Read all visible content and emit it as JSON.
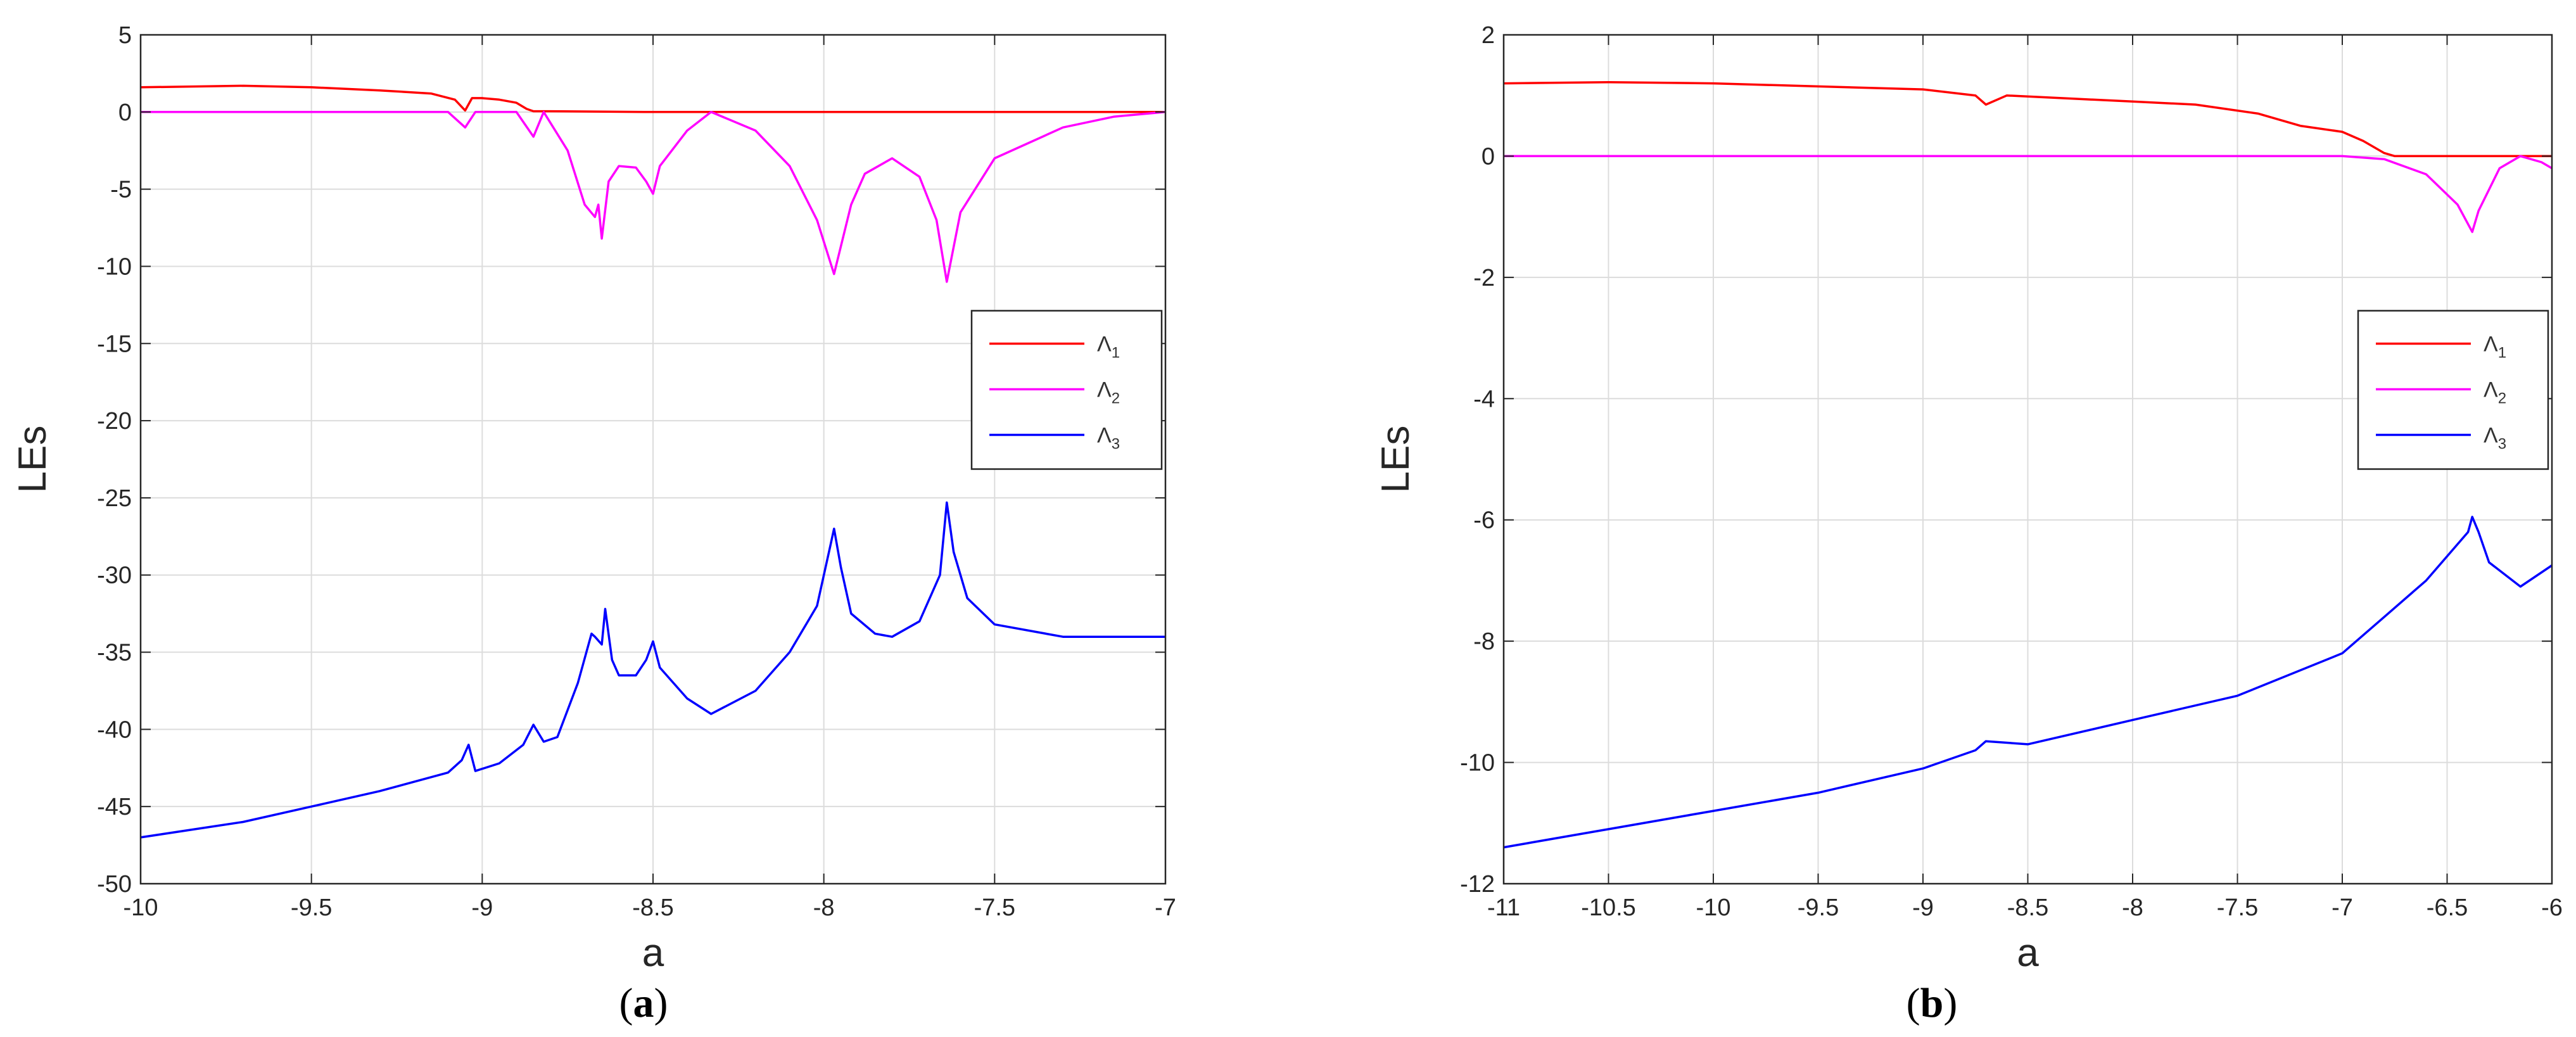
{
  "charts": [
    {
      "caption": "a",
      "colors": {
        "lambda1": "#ff0000",
        "lambda2": "#ff00ff",
        "lambda3": "#0000ff"
      },
      "chart_data": {
        "type": "line",
        "xlabel": "a",
        "ylabel": "LEs",
        "xlim": [
          -10,
          -7
        ],
        "ylim": [
          -50,
          5
        ],
        "xticks": [
          -10,
          -9.5,
          -9,
          -8.5,
          -8,
          -7.5,
          -7
        ],
        "xtick_labels": [
          "-10",
          "-9.5",
          "-9",
          "-8.5",
          "-8",
          "-7.5",
          "-7"
        ],
        "yticks": [
          5,
          0,
          -5,
          -10,
          -15,
          -20,
          -25,
          -30,
          -35,
          -40,
          -45,
          -50
        ],
        "ytick_labels": [
          "5",
          "0",
          "-5",
          "-10",
          "-15",
          "-20",
          "-25",
          "-30",
          "-35",
          "-40",
          "-45",
          "-50"
        ],
        "grid": true,
        "legend_position": "right",
        "series": [
          {
            "name": "Λ1",
            "legend_base": "Λ",
            "legend_sub": "1",
            "color": "#ff0000",
            "x": [
              -10,
              -9.7,
              -9.5,
              -9.3,
              -9.15,
              -9.08,
              -9.05,
              -9.03,
              -9.0,
              -8.95,
              -8.9,
              -8.87,
              -8.85,
              -8.8,
              -8.5,
              -8.0,
              -7.5,
              -7.0
            ],
            "y": [
              1.6,
              1.7,
              1.6,
              1.4,
              1.2,
              0.8,
              0.1,
              0.9,
              0.9,
              0.8,
              0.6,
              0.2,
              0.05,
              0.05,
              0.0,
              0.0,
              0.0,
              0.0
            ]
          },
          {
            "name": "Λ2",
            "legend_base": "Λ",
            "legend_sub": "2",
            "color": "#ff00ff",
            "x": [
              -10,
              -9.5,
              -9.1,
              -9.05,
              -9.02,
              -8.9,
              -8.85,
              -8.82,
              -8.75,
              -8.7,
              -8.67,
              -8.66,
              -8.65,
              -8.63,
              -8.6,
              -8.55,
              -8.52,
              -8.5,
              -8.48,
              -8.4,
              -8.33,
              -8.2,
              -8.1,
              -8.02,
              -7.97,
              -7.92,
              -7.88,
              -7.8,
              -7.72,
              -7.67,
              -7.64,
              -7.6,
              -7.5,
              -7.3,
              -7.15,
              -7.0
            ],
            "y": [
              0,
              0,
              0,
              -1.0,
              0,
              0,
              -1.6,
              0,
              -2.5,
              -6.0,
              -6.8,
              -6.0,
              -8.2,
              -4.5,
              -3.5,
              -3.6,
              -4.5,
              -5.3,
              -3.5,
              -1.2,
              0,
              -1.2,
              -3.5,
              -7.0,
              -10.5,
              -6.0,
              -4.0,
              -3.0,
              -4.2,
              -7.0,
              -11.0,
              -6.5,
              -3.0,
              -1.0,
              -0.3,
              0
            ]
          },
          {
            "name": "Λ3",
            "legend_base": "Λ",
            "legend_sub": "3",
            "color": "#0000ff",
            "x": [
              -10,
              -9.7,
              -9.5,
              -9.3,
              -9.1,
              -9.06,
              -9.04,
              -9.02,
              -8.95,
              -8.88,
              -8.85,
              -8.82,
              -8.78,
              -8.72,
              -8.68,
              -8.67,
              -8.65,
              -8.64,
              -8.62,
              -8.6,
              -8.55,
              -8.52,
              -8.5,
              -8.48,
              -8.4,
              -8.33,
              -8.2,
              -8.1,
              -8.02,
              -7.98,
              -7.97,
              -7.95,
              -7.92,
              -7.85,
              -7.8,
              -7.72,
              -7.66,
              -7.64,
              -7.62,
              -7.58,
              -7.5,
              -7.3,
              -7.0
            ],
            "y": [
              -47.0,
              -46.0,
              -45.0,
              -44.0,
              -42.8,
              -42.0,
              -41.0,
              -42.7,
              -42.2,
              -41.0,
              -39.7,
              -40.8,
              -40.5,
              -37.0,
              -33.8,
              -34.0,
              -34.5,
              -32.2,
              -35.5,
              -36.5,
              -36.5,
              -35.5,
              -34.3,
              -36.0,
              -38.0,
              -39.0,
              -37.5,
              -35.0,
              -32.0,
              -28.0,
              -27.0,
              -29.5,
              -32.5,
              -33.8,
              -34.0,
              -33.0,
              -30.0,
              -25.3,
              -28.5,
              -31.5,
              -33.2,
              -34.0,
              -34.0
            ]
          }
        ]
      }
    },
    {
      "caption": "b",
      "colors": {
        "lambda1": "#ff0000",
        "lambda2": "#ff00ff",
        "lambda3": "#0000ff"
      },
      "chart_data": {
        "type": "line",
        "xlabel": "a",
        "ylabel": "LEs",
        "xlim": [
          -11,
          -6
        ],
        "ylim": [
          -12,
          2
        ],
        "xticks": [
          -11,
          -10.5,
          -10,
          -9.5,
          -9,
          -8.5,
          -8,
          -7.5,
          -7,
          -6.5,
          -6
        ],
        "xtick_labels": [
          "-11",
          "-10.5",
          "-10",
          "-9.5",
          "-9",
          "-8.5",
          "-8",
          "-7.5",
          "-7",
          "-6.5",
          "-6"
        ],
        "yticks": [
          2,
          0,
          -2,
          -4,
          -6,
          -8,
          -10,
          -12
        ],
        "ytick_labels": [
          "2",
          "0",
          "-2",
          "-4",
          "-6",
          "-8",
          "-10",
          "-12"
        ],
        "grid": true,
        "legend_position": "right",
        "series": [
          {
            "name": "Λ1",
            "legend_base": "Λ",
            "legend_sub": "1",
            "color": "#ff0000",
            "x": [
              -11,
              -10.5,
              -10,
              -9.5,
              -9.0,
              -8.75,
              -8.7,
              -8.6,
              -8.3,
              -8.0,
              -7.7,
              -7.4,
              -7.2,
              -7.0,
              -6.9,
              -6.8,
              -6.75,
              -6.5,
              -6.0
            ],
            "y": [
              1.2,
              1.22,
              1.2,
              1.15,
              1.1,
              1.0,
              0.85,
              1.0,
              0.95,
              0.9,
              0.85,
              0.7,
              0.5,
              0.4,
              0.25,
              0.05,
              0.0,
              0.0,
              0.0
            ]
          },
          {
            "name": "Λ2",
            "legend_base": "Λ",
            "legend_sub": "2",
            "color": "#ff00ff",
            "x": [
              -11,
              -10,
              -9,
              -8,
              -7.0,
              -6.8,
              -6.6,
              -6.45,
              -6.38,
              -6.35,
              -6.25,
              -6.15,
              -6.05,
              -6.0
            ],
            "y": [
              0,
              0,
              0,
              0,
              0,
              -0.05,
              -0.3,
              -0.8,
              -1.25,
              -0.9,
              -0.2,
              0,
              -0.1,
              -0.2
            ]
          },
          {
            "name": "Λ3",
            "legend_base": "Λ",
            "legend_sub": "3",
            "color": "#0000ff",
            "x": [
              -11,
              -10.5,
              -10,
              -9.5,
              -9.0,
              -8.75,
              -8.7,
              -8.5,
              -8.0,
              -7.5,
              -7.0,
              -6.8,
              -6.6,
              -6.4,
              -6.38,
              -6.35,
              -6.3,
              -6.15,
              -6.0
            ],
            "y": [
              -11.4,
              -11.1,
              -10.8,
              -10.5,
              -10.1,
              -9.8,
              -9.65,
              -9.7,
              -9.3,
              -8.9,
              -8.2,
              -7.6,
              -7.0,
              -6.2,
              -5.95,
              -6.2,
              -6.7,
              -7.1,
              -6.75
            ]
          }
        ]
      }
    }
  ]
}
